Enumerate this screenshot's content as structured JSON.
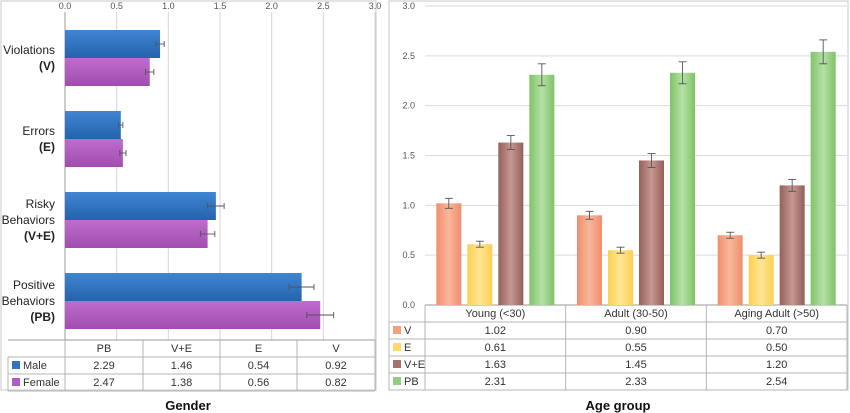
{
  "chart_data": [
    {
      "type": "bar",
      "orientation": "horizontal",
      "xlabel": "Gender",
      "xlim": [
        0,
        3.0
      ],
      "xticks": [
        "0.0",
        "0.5",
        "1.0",
        "1.5",
        "2.0",
        "2.5",
        "3.0"
      ],
      "grid": true,
      "categories": [
        {
          "line1": "Violations",
          "line2": "(V)"
        },
        {
          "line1": "Errors",
          "line2": "(E)"
        },
        {
          "line1": "Risky",
          "line1b": "Behaviors",
          "line2": "(V+E)"
        },
        {
          "line1": "Positive",
          "line1b": "Behaviors",
          "line2": "(PB)"
        }
      ],
      "series": [
        {
          "name": "Male",
          "color": "#2e75c4",
          "values": [
            0.92,
            0.54,
            1.46,
            2.29
          ],
          "errors": [
            0.04,
            0.02,
            0.08,
            0.12
          ]
        },
        {
          "name": "Female",
          "color": "#b25bc0",
          "values": [
            0.82,
            0.56,
            1.38,
            2.47
          ],
          "errors": [
            0.04,
            0.03,
            0.07,
            0.13
          ]
        }
      ],
      "table": {
        "columns": [
          "PB",
          "V+E",
          "E",
          "V"
        ],
        "rows": [
          {
            "name": "Male",
            "values": [
              "2.29",
              "1.46",
              "0.54",
              "0.92"
            ]
          },
          {
            "name": "Female",
            "values": [
              "2.47",
              "1.38",
              "0.56",
              "0.82"
            ]
          }
        ]
      }
    },
    {
      "type": "bar",
      "orientation": "vertical",
      "xlabel": "Age group",
      "ylim": [
        0,
        3.0
      ],
      "yticks": [
        "0.0",
        "0.5",
        "1.0",
        "1.5",
        "2.0",
        "2.5",
        "3.0"
      ],
      "grid": true,
      "categories": [
        "Young (<30)",
        "Adult (30-50)",
        "Aging Adult (>50)"
      ],
      "series": [
        {
          "name": "V",
          "color": "#f4a07f",
          "values": [
            1.02,
            0.9,
            0.7
          ],
          "errors": [
            0.05,
            0.04,
            0.03
          ]
        },
        {
          "name": "E",
          "color": "#ffd96a",
          "values": [
            0.61,
            0.55,
            0.5
          ],
          "errors": [
            0.03,
            0.03,
            0.03
          ]
        },
        {
          "name": "V+E",
          "color": "#a8726c",
          "values": [
            1.63,
            1.45,
            1.2
          ],
          "errors": [
            0.07,
            0.07,
            0.06
          ]
        },
        {
          "name": "PB",
          "color": "#93ce7e",
          "values": [
            2.31,
            2.33,
            2.54
          ],
          "errors": [
            0.11,
            0.11,
            0.12
          ]
        }
      ],
      "table": {
        "rows": [
          {
            "name": "V",
            "values": [
              "1.02",
              "0.90",
              "0.70"
            ]
          },
          {
            "name": "E",
            "values": [
              "0.61",
              "0.55",
              "0.50"
            ]
          },
          {
            "name": "V+E",
            "values": [
              "1.63",
              "1.45",
              "1.20"
            ]
          },
          {
            "name": "PB",
            "values": [
              "2.31",
              "2.33",
              "2.54"
            ]
          }
        ]
      }
    }
  ]
}
